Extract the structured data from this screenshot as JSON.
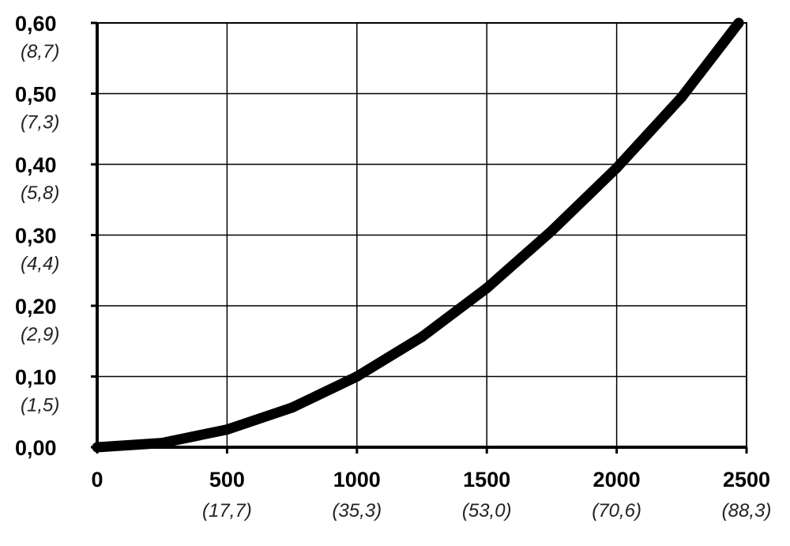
{
  "chart_data": {
    "type": "line",
    "title": "",
    "xlabel": "",
    "ylabel": "",
    "xlim": [
      0,
      2500
    ],
    "ylim": [
      0,
      0.6
    ],
    "grid": true,
    "x_ticks": [
      {
        "value": 0,
        "label": "0",
        "sublabel": ""
      },
      {
        "value": 500,
        "label": "500",
        "sublabel": "(17,7)"
      },
      {
        "value": 1000,
        "label": "1000",
        "sublabel": "(35,3)"
      },
      {
        "value": 1500,
        "label": "1500",
        "sublabel": "(53,0)"
      },
      {
        "value": 2000,
        "label": "2000",
        "sublabel": "(70,6)"
      },
      {
        "value": 2500,
        "label": "2500",
        "sublabel": "(88,3)"
      }
    ],
    "y_ticks": [
      {
        "value": 0.0,
        "label": "0,00",
        "sublabel": ""
      },
      {
        "value": 0.1,
        "label": "0,10",
        "sublabel": "(1,5)"
      },
      {
        "value": 0.2,
        "label": "0,20",
        "sublabel": "(2,9)"
      },
      {
        "value": 0.3,
        "label": "0,30",
        "sublabel": "(4,4)"
      },
      {
        "value": 0.4,
        "label": "0,40",
        "sublabel": "(5,8)"
      },
      {
        "value": 0.5,
        "label": "0,50",
        "sublabel": "(7,3)"
      },
      {
        "value": 0.6,
        "label": "0,60",
        "sublabel": "(8,7)"
      }
    ],
    "series": [
      {
        "color": "#000000",
        "x": [
          0,
          250,
          500,
          750,
          1000,
          1250,
          1500,
          1750,
          2000,
          2250,
          2470
        ],
        "y": [
          0.0,
          0.006,
          0.025,
          0.056,
          0.1,
          0.156,
          0.225,
          0.306,
          0.395,
          0.495,
          0.6
        ]
      }
    ]
  }
}
